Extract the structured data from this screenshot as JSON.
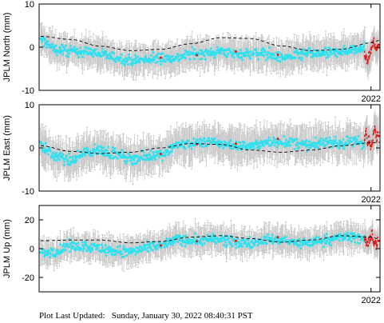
{
  "footer": {
    "label": "Plot Last Updated:",
    "value": "Sunday, January 30, 2022 08:40:31 PST"
  },
  "colors": {
    "data": "#2fe0ee",
    "recent": "#e01818",
    "error_bar": "#c8c8c8",
    "model": "#000000",
    "frame": "#000000"
  },
  "chart_data": [
    {
      "type": "scatter",
      "station": "JPLM",
      "ylabel": "JPLM North (mm)",
      "ylim": [
        -10,
        10
      ],
      "yticks": [
        10,
        0,
        -10
      ],
      "xlim": [
        2010.95,
        2022.3
      ],
      "xtick": 2022,
      "xtick_label": "2022",
      "grid": false,
      "series": [
        {
          "kind": "model",
          "x": [
            2011.0,
            2012.0,
            2013.0,
            2014.0,
            2015.0,
            2016.0,
            2017.0,
            2018.0,
            2019.0,
            2020.0,
            2021.0,
            2022.0,
            2022.3
          ],
          "y": [
            2.5,
            1.8,
            0.2,
            -0.8,
            -0.5,
            0.8,
            2.2,
            2.0,
            0.3,
            -0.8,
            -0.5,
            1.0,
            1.6
          ]
        },
        {
          "kind": "observations",
          "x": [
            2011.0,
            2011.5,
            2012.0,
            2012.5,
            2013.0,
            2013.5,
            2014.0,
            2014.5,
            2015.0,
            2015.5,
            2016.0,
            2016.5,
            2017.0,
            2017.5,
            2018.0,
            2018.5,
            2019.0,
            2019.5,
            2020.0,
            2020.5,
            2021.0,
            2021.5,
            2021.8
          ],
          "y": [
            1.5,
            -0.5,
            -1.0,
            -1.0,
            -1.5,
            -2.5,
            -3.0,
            -3.0,
            -2.5,
            -2.5,
            -1.5,
            -1.5,
            -1.0,
            -1.5,
            -1.5,
            -1.5,
            -2.5,
            -2.0,
            -1.5,
            -1.5,
            -1.0,
            -0.5,
            0.5
          ],
          "sigma": 3.0
        },
        {
          "kind": "recent",
          "x": [
            2021.8,
            2021.85,
            2021.9,
            2021.95,
            2022.0,
            2022.05,
            2022.1,
            2022.15,
            2022.2,
            2022.25
          ],
          "y": [
            -1.5,
            -2.5,
            -3.5,
            -2.0,
            -1.0,
            0.5,
            1.5,
            0.5,
            -0.5,
            0.5
          ],
          "sigma": 3.0
        }
      ]
    },
    {
      "type": "scatter",
      "station": "JPLM",
      "ylabel": "JPLM East (mm)",
      "ylim": [
        -10,
        10
      ],
      "yticks": [
        10,
        0,
        -10
      ],
      "xlim": [
        2010.95,
        2022.3
      ],
      "xtick": 2022,
      "xtick_label": "2022",
      "grid": false,
      "series": [
        {
          "kind": "model",
          "x": [
            2011.0,
            2012.0,
            2013.0,
            2014.0,
            2015.0,
            2016.0,
            2017.0,
            2018.0,
            2019.0,
            2020.0,
            2021.0,
            2022.0,
            2022.3
          ],
          "y": [
            0.5,
            -0.8,
            -1.3,
            -1.0,
            0.0,
            1.0,
            0.8,
            -0.5,
            -1.0,
            -0.5,
            0.5,
            1.2,
            1.3
          ]
        },
        {
          "kind": "observations",
          "x": [
            2011.0,
            2011.5,
            2012.0,
            2012.5,
            2013.0,
            2013.5,
            2014.0,
            2014.5,
            2015.0,
            2015.5,
            2016.0,
            2016.5,
            2017.0,
            2017.5,
            2018.0,
            2018.5,
            2019.0,
            2019.5,
            2020.0,
            2020.5,
            2021.0,
            2021.5,
            2021.8
          ],
          "y": [
            0.5,
            -2.0,
            -3.0,
            -1.0,
            -0.5,
            -1.5,
            -2.5,
            -2.0,
            -1.5,
            0.5,
            1.0,
            1.5,
            1.0,
            0.5,
            0.5,
            1.0,
            1.5,
            1.0,
            0.5,
            1.5,
            1.0,
            1.5,
            1.0
          ],
          "sigma": 3.5
        },
        {
          "kind": "recent",
          "x": [
            2021.8,
            2021.85,
            2021.9,
            2021.95,
            2022.0,
            2022.05,
            2022.1,
            2022.15,
            2022.2,
            2022.25
          ],
          "y": [
            2.0,
            4.0,
            1.0,
            2.0,
            0.0,
            1.0,
            3.0,
            5.0,
            2.0,
            3.5
          ],
          "sigma": 3.5
        }
      ]
    },
    {
      "type": "scatter",
      "station": "JPLM",
      "ylabel": "JPLM Up (mm)",
      "ylim": [
        -30,
        30
      ],
      "yticks": [
        20,
        0,
        -20
      ],
      "xlim": [
        2010.95,
        2022.3
      ],
      "xtick": 2022,
      "xtick_label": "2022",
      "grid": false,
      "series": [
        {
          "kind": "model",
          "x": [
            2011.0,
            2012.0,
            2013.0,
            2014.0,
            2015.0,
            2016.0,
            2017.0,
            2018.0,
            2019.0,
            2020.0,
            2021.0,
            2022.0,
            2022.3
          ],
          "y": [
            5.5,
            6.0,
            6.0,
            4.0,
            5.0,
            8.0,
            9.0,
            7.0,
            4.5,
            6.0,
            9.0,
            8.0,
            6.5
          ]
        },
        {
          "kind": "observations",
          "x": [
            2011.0,
            2011.5,
            2012.0,
            2012.5,
            2013.0,
            2013.5,
            2014.0,
            2014.5,
            2015.0,
            2015.5,
            2016.0,
            2016.5,
            2017.0,
            2017.5,
            2018.0,
            2018.5,
            2019.0,
            2019.5,
            2020.0,
            2020.5,
            2021.0,
            2021.5,
            2021.8
          ],
          "y": [
            -3.0,
            -2.0,
            2.0,
            2.0,
            0.0,
            -2.0,
            -2.0,
            0.0,
            2.0,
            6.0,
            6.0,
            6.0,
            6.0,
            4.0,
            4.0,
            6.0,
            6.0,
            4.0,
            4.0,
            6.0,
            8.0,
            8.0,
            6.0
          ],
          "sigma": 8.0
        },
        {
          "kind": "recent",
          "x": [
            2021.8,
            2021.85,
            2021.9,
            2021.95,
            2022.0,
            2022.05,
            2022.1,
            2022.15,
            2022.2,
            2022.25
          ],
          "y": [
            8.0,
            4.0,
            2.0,
            6.0,
            8.0,
            10.0,
            4.0,
            6.0,
            2.0,
            8.0
          ],
          "sigma": 8.0
        }
      ]
    }
  ]
}
